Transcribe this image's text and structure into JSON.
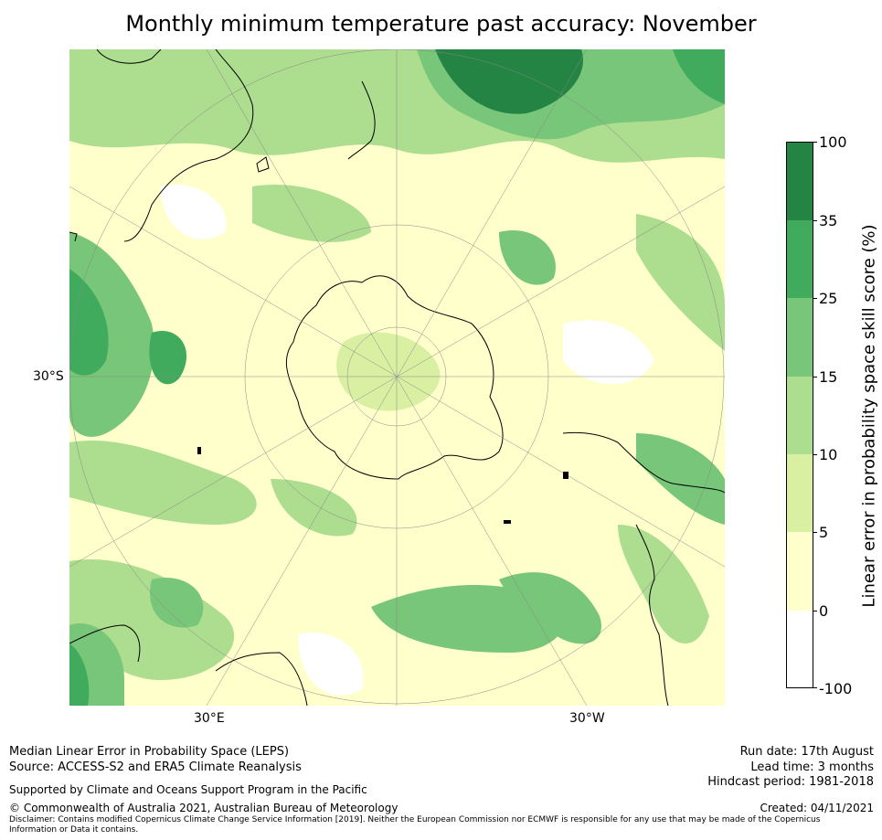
{
  "title": "Monthly minimum temperature past accuracy: November",
  "map": {
    "projection": "south-polar stereographic",
    "lat_label": "30°S",
    "lon_labels": [
      "30°E",
      "30°W"
    ]
  },
  "colorbar": {
    "label": "Linear error in probability space skill score (%)",
    "ticks": [
      "100",
      "35",
      "25",
      "15",
      "10",
      "5",
      "0",
      "-100"
    ],
    "colors": [
      "#238443",
      "#41ab5d",
      "#78c679",
      "#addd8e",
      "#d9f0a3",
      "#ffffcc",
      "#ffffff"
    ]
  },
  "footer": {
    "line1": "Median Linear Error in Probability Space (LEPS)",
    "line2": "Source: ACCESS-S2 and ERA5 Climate Reanalysis",
    "line3": "Supported by Climate and Oceans Support Program in the Pacific",
    "line4": "© Commonwealth of Australia 2021, Australian Bureau of Meteorology",
    "disclaimer": "Disclaimer: Contains modified Copernicus Climate Change Service Information [2019]. Neither the European Commission nor ECMWF is responsible for any use that may be made of the Copernicus Information or Data it contains.",
    "run_date": "Run date: 17th August",
    "lead_time": "Lead time: 3 months",
    "hindcast": "Hindcast period: 1981-2018",
    "created": "Created: 04/11/2021"
  }
}
